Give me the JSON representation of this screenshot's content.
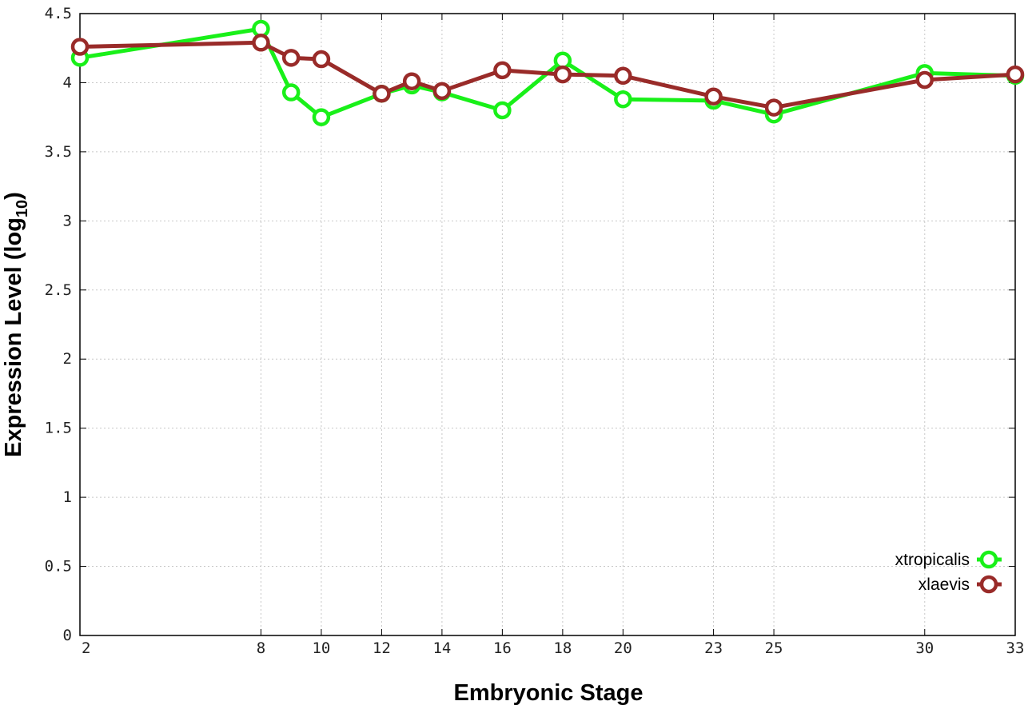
{
  "chart_data": {
    "type": "line",
    "xlabel": "Embryonic Stage",
    "ylabel": "Expression Level (log",
    "ylabel_subscript": "10",
    "ylabel_close": ")",
    "x_ticks": [
      "2",
      "8",
      "10",
      "12",
      "14",
      "16",
      "18",
      "20",
      "23",
      "25",
      "30",
      "33"
    ],
    "y_ticks": [
      "0",
      "0.5",
      "1",
      "1.5",
      "2",
      "2.5",
      "3",
      "3.5",
      "4",
      "4.5"
    ],
    "ylim": [
      0,
      4.5
    ],
    "grid": true,
    "legend_position": "bottom-right",
    "x": [
      2,
      8,
      9,
      10,
      12,
      13,
      14,
      16,
      18,
      20,
      23,
      25,
      30,
      33
    ],
    "series": [
      {
        "name": "xtropicalis",
        "color": "#19f019",
        "values": [
          4.18,
          4.39,
          3.93,
          3.75,
          3.92,
          3.98,
          3.93,
          3.8,
          4.16,
          3.88,
          3.87,
          3.77,
          4.07,
          4.05
        ]
      },
      {
        "name": "xlaevis",
        "color": "#992b29",
        "values": [
          4.26,
          4.29,
          4.18,
          4.17,
          3.92,
          4.01,
          3.94,
          4.09,
          4.06,
          4.05,
          3.9,
          3.82,
          4.02,
          4.06
        ]
      }
    ]
  }
}
